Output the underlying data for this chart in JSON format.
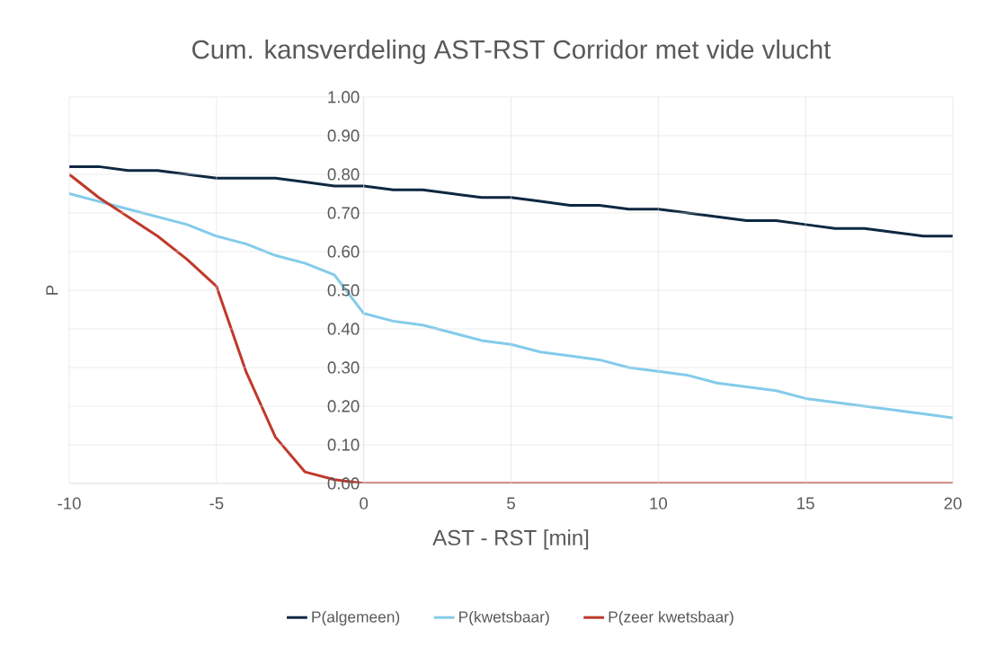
{
  "chart_data": {
    "type": "line",
    "title": "Cum. kansverdeling AST-RST Corridor met vide vlucht",
    "xlabel": "AST - RST [min]",
    "ylabel": "P",
    "x": [
      -10,
      -9,
      -8,
      -7,
      -6,
      -5,
      -4,
      -3,
      -2,
      -1,
      0,
      1,
      2,
      3,
      4,
      5,
      6,
      7,
      8,
      9,
      10,
      11,
      12,
      13,
      14,
      15,
      16,
      17,
      18,
      19,
      20
    ],
    "series": [
      {
        "name": "P(algemeen)",
        "color": "#0e2841",
        "values": [
          0.82,
          0.82,
          0.81,
          0.81,
          0.8,
          0.79,
          0.79,
          0.79,
          0.78,
          0.77,
          0.77,
          0.76,
          0.76,
          0.75,
          0.74,
          0.74,
          0.73,
          0.72,
          0.72,
          0.71,
          0.71,
          0.7,
          0.69,
          0.68,
          0.68,
          0.67,
          0.66,
          0.66,
          0.65,
          0.64,
          0.64
        ]
      },
      {
        "name": "P(kwetsbaar)",
        "color": "#83cbeb",
        "values": [
          0.75,
          0.73,
          0.71,
          0.69,
          0.67,
          0.64,
          0.62,
          0.59,
          0.57,
          0.54,
          0.44,
          0.42,
          0.41,
          0.39,
          0.37,
          0.36,
          0.34,
          0.33,
          0.32,
          0.3,
          0.29,
          0.28,
          0.26,
          0.25,
          0.24,
          0.22,
          0.21,
          0.2,
          0.19,
          0.18,
          0.17
        ]
      },
      {
        "name": "P(zeer kwetsbaar)",
        "color": "#c0392b",
        "values": [
          0.8,
          0.74,
          0.69,
          0.64,
          0.58,
          0.51,
          0.29,
          0.12,
          0.03,
          0.01,
          0,
          0,
          0,
          0,
          0,
          0,
          0,
          0,
          0,
          0,
          0,
          0,
          0,
          0,
          0,
          0,
          0,
          0,
          0,
          0,
          0
        ]
      }
    ],
    "xlim": [
      -10,
      20
    ],
    "xticks": [
      -10,
      -5,
      0,
      5,
      10,
      15,
      20
    ],
    "ylim": [
      0,
      1
    ],
    "yticks": [
      {
        "value": 0,
        "label": "0.00"
      },
      {
        "value": 0.1,
        "label": "0.10"
      },
      {
        "value": 0.2,
        "label": "0.20"
      },
      {
        "value": 0.3,
        "label": "0.30"
      },
      {
        "value": 0.4,
        "label": "0.40"
      },
      {
        "value": 0.5,
        "label": "0.50"
      },
      {
        "value": 0.6,
        "label": "0.60"
      },
      {
        "value": 0.7,
        "label": "0.70"
      },
      {
        "value": 0.8,
        "label": "0.80"
      },
      {
        "value": 0.9,
        "label": "0.90"
      },
      {
        "value": 1,
        "label": "1.00"
      }
    ],
    "grid": true,
    "legend": "bottom",
    "marker": "none",
    "line_style": "solid"
  }
}
